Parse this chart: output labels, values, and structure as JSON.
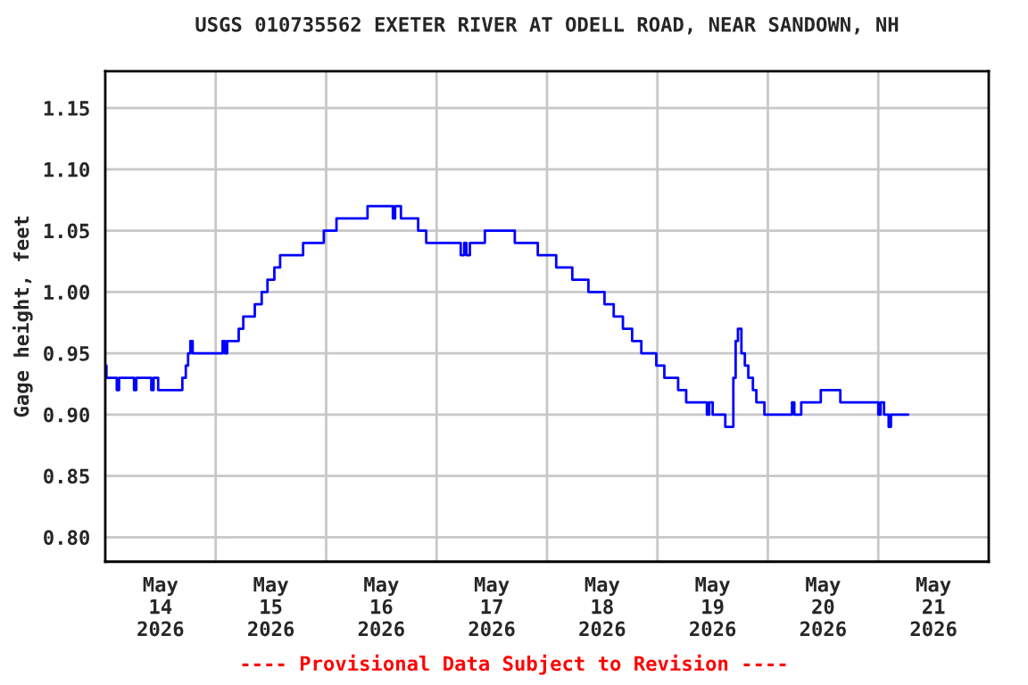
{
  "chart_data": {
    "type": "step",
    "title": "USGS 010735562 EXETER RIVER AT ODELL ROAD, NEAR SANDOWN, NH",
    "ylabel": "Gage height, feet",
    "annotations": [
      "---- Provisional Data Subject to Revision ----"
    ],
    "x": [
      "2026-05-14T00:00",
      "2026-05-14T00:15",
      "2026-05-14T02:30",
      "2026-05-14T03:00",
      "2026-05-14T06:15",
      "2026-05-14T06:45",
      "2026-05-14T10:00",
      "2026-05-14T10:30",
      "2026-05-14T11:30",
      "2026-05-14T16:45",
      "2026-05-14T17:30",
      "2026-05-14T18:00",
      "2026-05-14T18:30",
      "2026-05-14T19:00",
      "2026-05-15T01:30",
      "2026-05-15T02:00",
      "2026-05-15T02:30",
      "2026-05-15T05:00",
      "2026-05-15T06:00",
      "2026-05-15T08:30",
      "2026-05-15T10:00",
      "2026-05-15T11:15",
      "2026-05-15T12:45",
      "2026-05-15T14:00",
      "2026-05-15T19:00",
      "2026-05-15T23:30",
      "2026-05-16T02:15",
      "2026-05-16T09:00",
      "2026-05-16T14:30",
      "2026-05-16T15:00",
      "2026-05-16T16:15",
      "2026-05-16T20:00",
      "2026-05-16T21:45",
      "2026-05-17T05:15",
      "2026-05-17T06:00",
      "2026-05-17T06:30",
      "2026-05-17T07:15",
      "2026-05-17T10:30",
      "2026-05-17T17:00",
      "2026-05-17T22:00",
      "2026-05-18T02:00",
      "2026-05-18T05:30",
      "2026-05-18T09:00",
      "2026-05-18T12:30",
      "2026-05-18T14:30",
      "2026-05-18T16:30",
      "2026-05-18T18:30",
      "2026-05-18T20:30",
      "2026-05-18T23:45",
      "2026-05-19T01:30",
      "2026-05-19T04:30",
      "2026-05-19T06:15",
      "2026-05-19T10:45",
      "2026-05-19T11:15",
      "2026-05-19T12:00",
      "2026-05-19T14:45",
      "2026-05-19T16:30",
      "2026-05-19T17:00",
      "2026-05-19T17:30",
      "2026-05-19T18:15",
      "2026-05-19T19:00",
      "2026-05-19T19:45",
      "2026-05-19T20:45",
      "2026-05-19T21:30",
      "2026-05-19T23:15",
      "2026-05-20T05:15",
      "2026-05-20T05:45",
      "2026-05-20T07:15",
      "2026-05-20T11:30",
      "2026-05-20T15:45",
      "2026-05-21T00:00",
      "2026-05-21T00:30",
      "2026-05-21T01:15",
      "2026-05-21T02:15",
      "2026-05-21T02:45",
      "2026-05-21T06:30"
    ],
    "series": [
      {
        "color": "#0000ff",
        "values": [
          0.94,
          0.93,
          0.92,
          0.93,
          0.92,
          0.93,
          0.92,
          0.93,
          0.92,
          0.93,
          0.94,
          0.95,
          0.96,
          0.95,
          0.96,
          0.95,
          0.96,
          0.97,
          0.98,
          0.99,
          1.0,
          1.01,
          1.02,
          1.03,
          1.04,
          1.05,
          1.06,
          1.07,
          1.06,
          1.07,
          1.06,
          1.05,
          1.04,
          1.03,
          1.04,
          1.03,
          1.04,
          1.05,
          1.04,
          1.03,
          1.02,
          1.01,
          1.0,
          0.99,
          0.98,
          0.97,
          0.96,
          0.95,
          0.94,
          0.93,
          0.92,
          0.91,
          0.9,
          0.91,
          0.9,
          0.89,
          0.93,
          0.96,
          0.97,
          0.95,
          0.94,
          0.93,
          0.92,
          0.91,
          0.9,
          0.91,
          0.9,
          0.91,
          0.92,
          0.91,
          0.9,
          0.91,
          0.9,
          0.89,
          0.9,
          0.9
        ]
      }
    ],
    "xlim": [
      "2026-05-14T00:00",
      "2026-05-22T00:00"
    ],
    "xticks": [
      {
        "value": "2026-05-14T12:00",
        "label": "May\n14\n2026"
      },
      {
        "value": "2026-05-15T12:00",
        "label": "May\n15\n2026"
      },
      {
        "value": "2026-05-16T12:00",
        "label": "May\n16\n2026"
      },
      {
        "value": "2026-05-17T12:00",
        "label": "May\n17\n2026"
      },
      {
        "value": "2026-05-18T12:00",
        "label": "May\n18\n2026"
      },
      {
        "value": "2026-05-19T12:00",
        "label": "May\n19\n2026"
      },
      {
        "value": "2026-05-20T12:00",
        "label": "May\n20\n2026"
      },
      {
        "value": "2026-05-21T12:00",
        "label": "May\n21\n2026"
      },
      {
        "value": "2026-05-15T00:00",
        "label": null
      },
      {
        "value": "2026-05-16T00:00",
        "label": null
      },
      {
        "value": "2026-05-17T00:00",
        "label": null
      },
      {
        "value": "2026-05-18T00:00",
        "label": null
      },
      {
        "value": "2026-05-19T00:00",
        "label": null
      },
      {
        "value": "2026-05-20T00:00",
        "label": null
      },
      {
        "value": "2026-05-21T00:00",
        "label": null
      }
    ],
    "ylim": [
      0.78,
      1.18
    ],
    "yticks": [
      {
        "value": 0.8,
        "label": "0.80"
      },
      {
        "value": 0.85,
        "label": "0.85"
      },
      {
        "value": 0.9,
        "label": "0.90"
      },
      {
        "value": 0.95,
        "label": "0.95"
      },
      {
        "value": 1.0,
        "label": "1.00"
      },
      {
        "value": 1.05,
        "label": "1.05"
      },
      {
        "value": 1.1,
        "label": "1.10"
      },
      {
        "value": 1.15,
        "label": "1.15"
      }
    ],
    "grid": true
  }
}
